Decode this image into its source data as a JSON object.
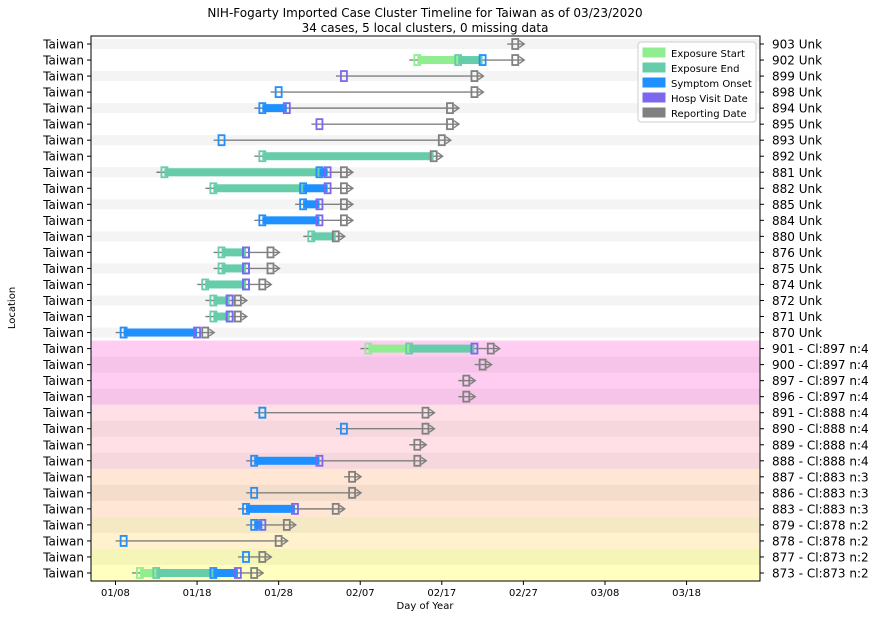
{
  "chart_data": {
    "type": "timeline",
    "title": "NIH-Fogarty Imported Case Cluster Timeline for Taiwan as of 03/23/2020",
    "subtitle": "34 cases, 5 local clusters, 0 missing data",
    "xlabel": "Day of Year",
    "ylabel": "Location",
    "x_range": [
      "2020-01-05",
      "2020-03-27"
    ],
    "x_ticks": [
      {
        "date": "2020-01-08",
        "label": "01/08"
      },
      {
        "date": "2020-01-18",
        "label": "01/18"
      },
      {
        "date": "2020-01-28",
        "label": "01/28"
      },
      {
        "date": "2020-02-07",
        "label": "02/07"
      },
      {
        "date": "2020-02-17",
        "label": "02/17"
      },
      {
        "date": "2020-02-27",
        "label": "02/27"
      },
      {
        "date": "2020-03-08",
        "label": "03/08"
      },
      {
        "date": "2020-03-18",
        "label": "03/18"
      }
    ],
    "legend": {
      "position": "top-right",
      "items": [
        {
          "key": "exposure_start",
          "label": "Exposure Start",
          "color": "#90ee90"
        },
        {
          "key": "exposure_end",
          "label": "Exposure End",
          "color": "#66cdaa"
        },
        {
          "key": "symptom_onset",
          "label": "Symptom Onset",
          "color": "#1e90ff"
        },
        {
          "key": "hosp_visit",
          "label": "Hosp Visit Date",
          "color": "#7b68ee"
        },
        {
          "key": "reporting",
          "label": "Reporting Date",
          "color": "#808080"
        }
      ]
    },
    "clusters": [
      {
        "id": "873",
        "color": "#ffffc0"
      },
      {
        "id": "878",
        "color": "#fff2cc"
      },
      {
        "id": "883",
        "color": "#ffe6d5"
      },
      {
        "id": "888",
        "color": "#ffe0e6"
      },
      {
        "id": "897",
        "color": "#ffccf2"
      }
    ],
    "cases": [
      {
        "location": "Taiwan",
        "label": "903 Unk",
        "exp_start": null,
        "exp_end": null,
        "onset": null,
        "hosp": null,
        "report": "2020-02-26"
      },
      {
        "location": "Taiwan",
        "label": "902 Unk",
        "exp_start": "2020-02-14",
        "exp_end": "2020-02-19",
        "onset": "2020-02-22",
        "hosp": null,
        "report": "2020-02-26"
      },
      {
        "location": "Taiwan",
        "label": "899 Unk",
        "exp_start": null,
        "exp_end": null,
        "onset": null,
        "hosp": "2020-02-05",
        "report": "2020-02-21"
      },
      {
        "location": "Taiwan",
        "label": "898 Unk",
        "exp_start": null,
        "exp_end": null,
        "onset": "2020-01-28",
        "hosp": null,
        "report": "2020-02-21"
      },
      {
        "location": "Taiwan",
        "label": "894 Unk",
        "exp_start": null,
        "exp_end": null,
        "onset": "2020-01-26",
        "hosp": "2020-01-29",
        "report": "2020-02-18"
      },
      {
        "location": "Taiwan",
        "label": "895 Unk",
        "exp_start": null,
        "exp_end": null,
        "onset": null,
        "hosp": "2020-02-02",
        "report": "2020-02-18"
      },
      {
        "location": "Taiwan",
        "label": "893 Unk",
        "exp_start": null,
        "exp_end": null,
        "onset": "2020-01-21",
        "hosp": null,
        "report": "2020-02-17"
      },
      {
        "location": "Taiwan",
        "label": "892 Unk",
        "exp_start": null,
        "exp_end": "2020-01-26",
        "onset": null,
        "hosp": null,
        "report": "2020-02-16"
      },
      {
        "location": "Taiwan",
        "label": "881 Unk",
        "exp_start": null,
        "exp_end": "2020-01-14",
        "onset": "2020-02-02",
        "hosp": "2020-02-03",
        "report": "2020-02-05"
      },
      {
        "location": "Taiwan",
        "label": "882 Unk",
        "exp_start": null,
        "exp_end": "2020-01-20",
        "onset": "2020-01-31",
        "hosp": "2020-02-03",
        "report": "2020-02-05"
      },
      {
        "location": "Taiwan",
        "label": "885 Unk",
        "exp_start": null,
        "exp_end": null,
        "onset": "2020-01-31",
        "hosp": "2020-02-02",
        "report": "2020-02-05"
      },
      {
        "location": "Taiwan",
        "label": "884 Unk",
        "exp_start": null,
        "exp_end": null,
        "onset": "2020-01-26",
        "hosp": "2020-02-02",
        "report": "2020-02-05"
      },
      {
        "location": "Taiwan",
        "label": "880 Unk",
        "exp_start": null,
        "exp_end": "2020-02-01",
        "onset": null,
        "hosp": null,
        "report": "2020-02-04"
      },
      {
        "location": "Taiwan",
        "label": "876 Unk",
        "exp_start": null,
        "exp_end": "2020-01-21",
        "onset": "2020-01-24",
        "hosp": "2020-01-24",
        "report": "2020-01-27"
      },
      {
        "location": "Taiwan",
        "label": "875 Unk",
        "exp_start": null,
        "exp_end": "2020-01-21",
        "onset": "2020-01-24",
        "hosp": "2020-01-24",
        "report": "2020-01-27"
      },
      {
        "location": "Taiwan",
        "label": "874 Unk",
        "exp_start": null,
        "exp_end": "2020-01-19",
        "onset": "2020-01-24",
        "hosp": "2020-01-24",
        "report": "2020-01-26"
      },
      {
        "location": "Taiwan",
        "label": "872 Unk",
        "exp_start": null,
        "exp_end": "2020-01-20",
        "onset": "2020-01-22",
        "hosp": "2020-01-22",
        "report": "2020-01-23"
      },
      {
        "location": "Taiwan",
        "label": "871 Unk",
        "exp_start": null,
        "exp_end": "2020-01-20",
        "onset": "2020-01-22",
        "hosp": "2020-01-22",
        "report": "2020-01-23"
      },
      {
        "location": "Taiwan",
        "label": "870 Unk",
        "exp_start": null,
        "exp_end": null,
        "onset": "2020-01-09",
        "hosp": "2020-01-18",
        "report": "2020-01-19"
      },
      {
        "location": "Taiwan",
        "label": "901 - Cl:897 n:4",
        "exp_start": "2020-02-08",
        "exp_end": "2020-02-13",
        "onset": null,
        "hosp": "2020-02-21",
        "report": "2020-02-23"
      },
      {
        "location": "Taiwan",
        "label": "900 - Cl:897 n:4",
        "exp_start": null,
        "exp_end": null,
        "onset": null,
        "hosp": null,
        "report": "2020-02-22"
      },
      {
        "location": "Taiwan",
        "label": "897 - Cl:897 n:4",
        "exp_start": null,
        "exp_end": null,
        "onset": null,
        "hosp": null,
        "report": "2020-02-20"
      },
      {
        "location": "Taiwan",
        "label": "896 - Cl:897 n:4",
        "exp_start": null,
        "exp_end": null,
        "onset": null,
        "hosp": null,
        "report": "2020-02-20"
      },
      {
        "location": "Taiwan",
        "label": "891 - Cl:888 n:4",
        "exp_start": null,
        "exp_end": "2020-01-26",
        "onset": "2020-01-26",
        "hosp": null,
        "report": "2020-02-15"
      },
      {
        "location": "Taiwan",
        "label": "890 - Cl:888 n:4",
        "exp_start": null,
        "exp_end": null,
        "onset": "2020-02-05",
        "hosp": null,
        "report": "2020-02-15"
      },
      {
        "location": "Taiwan",
        "label": "889 - Cl:888 n:4",
        "exp_start": null,
        "exp_end": null,
        "onset": null,
        "hosp": null,
        "report": "2020-02-14"
      },
      {
        "location": "Taiwan",
        "label": "888 - Cl:888 n:4",
        "exp_start": null,
        "exp_end": null,
        "onset": "2020-01-25",
        "hosp": "2020-02-02",
        "report": "2020-02-14"
      },
      {
        "location": "Taiwan",
        "label": "887 - Cl:883 n:3",
        "exp_start": null,
        "exp_end": null,
        "onset": null,
        "hosp": null,
        "report": "2020-02-06"
      },
      {
        "location": "Taiwan",
        "label": "886 - Cl:883 n:3",
        "exp_start": null,
        "exp_end": null,
        "onset": "2020-01-25",
        "hosp": null,
        "report": "2020-02-06"
      },
      {
        "location": "Taiwan",
        "label": "883 - Cl:883 n:3",
        "exp_start": null,
        "exp_end": null,
        "onset": "2020-01-24",
        "hosp": "2020-01-30",
        "report": "2020-02-04"
      },
      {
        "location": "Taiwan",
        "label": "879 - Cl:878 n:2",
        "exp_start": null,
        "exp_end": null,
        "onset": "2020-01-25",
        "hosp": "2020-01-26",
        "report": "2020-01-29"
      },
      {
        "location": "Taiwan",
        "label": "878 - Cl:878 n:2",
        "exp_start": null,
        "exp_end": null,
        "onset": "2020-01-09",
        "hosp": null,
        "report": "2020-01-28"
      },
      {
        "location": "Taiwan",
        "label": "877 - Cl:873 n:2",
        "exp_start": null,
        "exp_end": null,
        "onset": "2020-01-24",
        "hosp": null,
        "report": "2020-01-26"
      },
      {
        "location": "Taiwan",
        "label": "873 - Cl:873 n:2",
        "exp_start": "2020-01-11",
        "exp_end": "2020-01-13",
        "onset": "2020-01-20",
        "hosp": "2020-01-23",
        "report": "2020-01-25"
      }
    ]
  }
}
